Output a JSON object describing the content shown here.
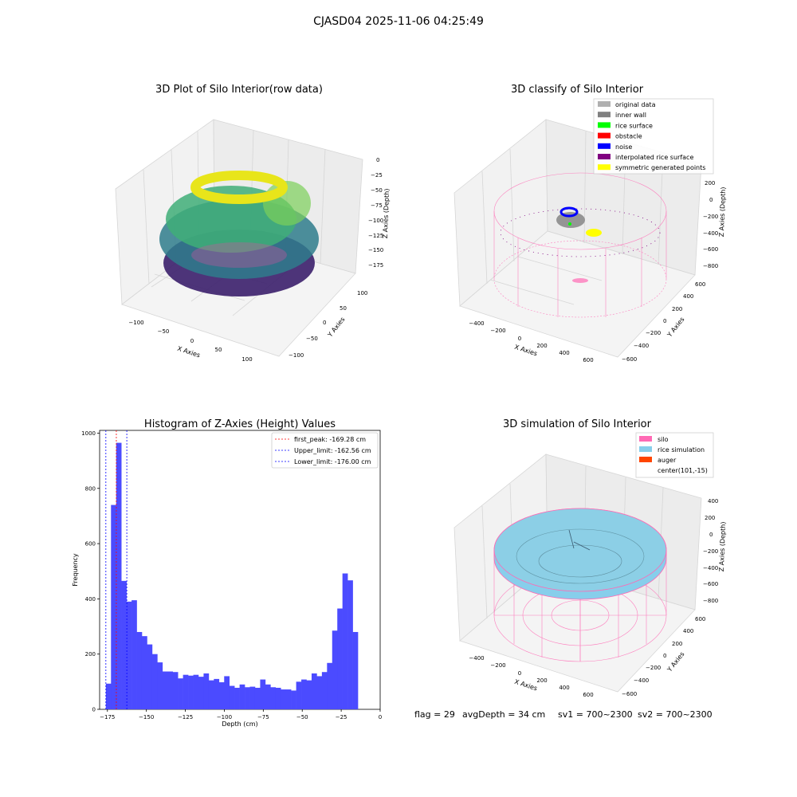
{
  "figure": {
    "suptitle": "CJASD04 2025-11-06 04:25:49"
  },
  "panels": {
    "raw": {
      "title": "3D Plot of Silo Interior(row data)",
      "xlabel": "X Axies",
      "ylabel": "Y Axies",
      "zlabel": "Z Axies (Depth)",
      "xticks": [
        "−100",
        "−50",
        "0",
        "50",
        "100"
      ],
      "yticks": [
        "100",
        "50",
        "0",
        "−50",
        "−100"
      ],
      "zticks": [
        "0",
        "−25",
        "−50",
        "−75",
        "−100",
        "−125",
        "−150",
        "−175"
      ]
    },
    "classify": {
      "title": "3D classify of Silo Interior",
      "xlabel": "X Axies",
      "ylabel": "Y Axies",
      "zlabel": "Z Axies (Depth)",
      "xticks": [
        "−400",
        "−200",
        "0",
        "200",
        "400",
        "600"
      ],
      "yticks": [
        "600",
        "400",
        "200",
        "0",
        "−200",
        "−400",
        "−600"
      ],
      "zticks": [
        "200",
        "0",
        "−200",
        "−400",
        "−600",
        "−800"
      ],
      "legend": [
        {
          "label": "original data",
          "color": "#b0b0b0"
        },
        {
          "label": "inner wall",
          "color": "#808080"
        },
        {
          "label": "rice surface",
          "color": "#00ff00"
        },
        {
          "label": "obstacle",
          "color": "#ff0000"
        },
        {
          "label": "noise",
          "color": "#0000ff"
        },
        {
          "label": "interpolated rice surface",
          "color": "#800080"
        },
        {
          "label": "symmetric generated points",
          "color": "#ffff00"
        }
      ]
    },
    "simulation": {
      "title": "3D simulation of Silo Interior",
      "xlabel": "X Axies",
      "ylabel": "Y Axies",
      "zlabel": "Z Axies (Depth)",
      "xticks": [
        "−400",
        "−200",
        "0",
        "200",
        "400",
        "600"
      ],
      "yticks": [
        "600",
        "400",
        "200",
        "0",
        "−200",
        "−400",
        "−600"
      ],
      "zticks": [
        "400",
        "200",
        "0",
        "−200",
        "−400",
        "−600",
        "−800"
      ],
      "legend": [
        {
          "label": "silo",
          "color": "#ff69b4"
        },
        {
          "label": "rice simulation",
          "color": "#87ceeb"
        },
        {
          "label": "auger",
          "color": "#ff4500"
        },
        {
          "label": "center(101,-15)",
          "color": ""
        }
      ]
    }
  },
  "status": {
    "flag": "flag = 29",
    "avg_depth": "avgDepth = 34 cm",
    "sv1": "sv1 = 700~2300",
    "sv2": "sv2 = 700~2300"
  },
  "colors": {
    "histogram_bar": "#4b4bff",
    "first_peak_line": "#ff0000",
    "limit_lines": "#0000ff",
    "silo_wire": "#ff69b4",
    "rice_surface": "#87ceeb"
  },
  "chart_data": [
    {
      "type": "bar",
      "title": "Histogram of Z-Axies (Height) Values",
      "xlabel": "Depth (cm)",
      "ylabel": "Frequency",
      "xlim": [
        -180,
        0
      ],
      "ylim": [
        0,
        1010
      ],
      "xticks": [
        -175,
        -150,
        -125,
        -100,
        -75,
        -50,
        -25,
        0
      ],
      "xtick_labels": [
        "−175",
        "−150",
        "−125",
        "−100",
        "−75",
        "−50",
        "−25",
        "0"
      ],
      "yticks": [
        0,
        200,
        400,
        600,
        800,
        1000
      ],
      "ytick_labels": [
        "0",
        "200",
        "400",
        "600",
        "800",
        "1000"
      ],
      "bin_start": -176.0,
      "bin_width": 3.3,
      "values": [
        93,
        740,
        965,
        465,
        390,
        395,
        280,
        265,
        235,
        200,
        170,
        137,
        137,
        135,
        112,
        125,
        122,
        125,
        118,
        130,
        105,
        110,
        98,
        120,
        85,
        78,
        90,
        80,
        82,
        78,
        108,
        90,
        80,
        78,
        72,
        72,
        68,
        100,
        108,
        105,
        130,
        120,
        135,
        168,
        285,
        365,
        492,
        467,
        280
      ],
      "vlines": [
        {
          "label": "first_peak: -169.28 cm",
          "x": -169.28,
          "color": "#ff0000"
        },
        {
          "label": "Upper_limit: -162.56 cm",
          "x": -162.56,
          "color": "#0000ff"
        },
        {
          "label": "Lower_limit: -176.00 cm",
          "x": -176.0,
          "color": "#0000ff"
        }
      ],
      "legend_position": "top-right",
      "grid": false
    }
  ]
}
